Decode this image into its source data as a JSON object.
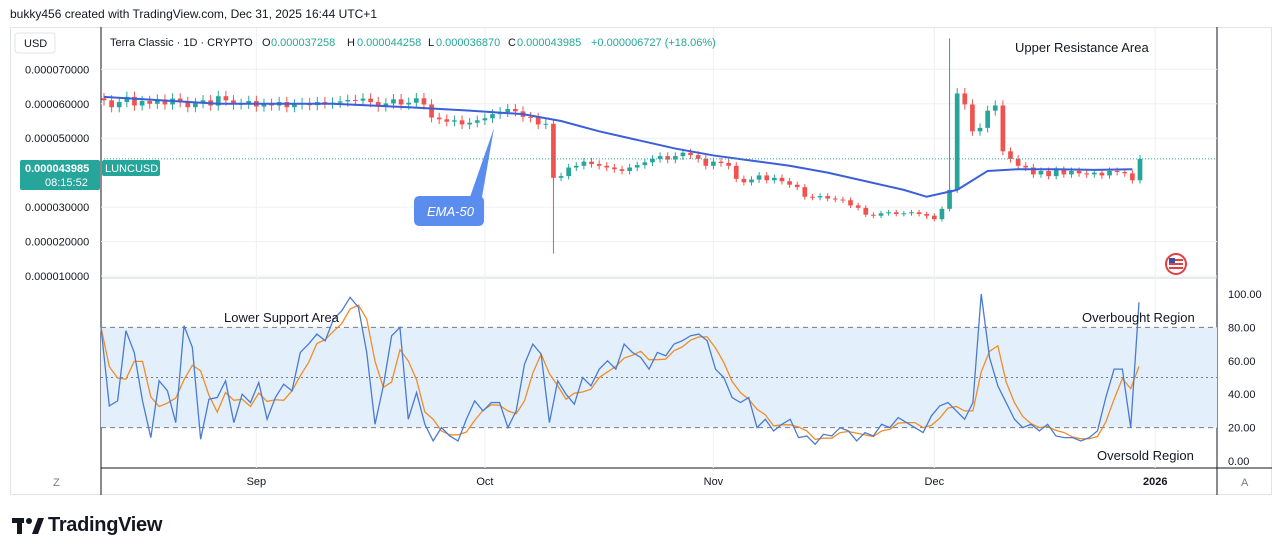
{
  "header": {
    "attribution": "bukky456 created with TradingView.com, Dec 31, 2025 16:44 UTC+1"
  },
  "legend": {
    "currency": "USD",
    "symbol": "Terra Classic · 1D · CRYPTO",
    "o_label": "O",
    "o_value": "0.000037258",
    "h_label": "H",
    "h_value": "0.000044258",
    "l_label": "L",
    "l_value": "0.000036870",
    "c_label": "C",
    "c_value": "0.000043985",
    "change": "+0.000006727 (+18.06%)"
  },
  "price_badge": {
    "price": "0.000043985",
    "countdown": "08:15:52",
    "ticker": "LUNCUSD"
  },
  "annotations": {
    "upper_resistance": "Upper Resistance Area",
    "lower_support": "Lower Support Area",
    "ema_callout": "EMA-50",
    "overbought": "Overbought Region",
    "oversold": "Oversold Region"
  },
  "axis_buttons": {
    "left": "Z",
    "right": "A"
  },
  "branding": {
    "logo_text": "TradingView"
  },
  "colors": {
    "up": "#26a69a",
    "down": "#ef5350",
    "ema": "#3b5fd9",
    "stoch_k": "#4a7bd0",
    "stoch_d": "#f28c28",
    "stoch_band": "#e3f0fb",
    "callout": "#5b8def"
  },
  "chart_data": [
    {
      "type": "candlestick",
      "ylim": [
        1e-05,
        8.2e-05
      ],
      "yticks": [
        "0.000070000",
        "0.000060000",
        "0.000050000",
        "0.000030000",
        "0.000020000",
        "0.000010000"
      ],
      "ytick_values": [
        7e-05,
        6e-05,
        5e-05,
        3e-05,
        2e-05,
        1e-05
      ],
      "xticks": [
        "Sep",
        "Oct",
        "Nov",
        "Dec",
        "2026"
      ],
      "xtick_days": [
        20,
        50,
        80,
        109,
        138
      ],
      "start_day": 0,
      "close": [
        6.1e-05,
        5.9e-05,
        6.05e-05,
        6.2e-05,
        5.95e-05,
        6.08e-05,
        6e-05,
        6.12e-05,
        5.98e-05,
        6.15e-05,
        6.05e-05,
        5.9e-05,
        6.02e-05,
        6.1e-05,
        5.95e-05,
        6.22e-05,
        6.1e-05,
        5.98e-05,
        6e-05,
        6.08e-05,
        5.92e-05,
        6e-05,
        5.95e-05,
        6.05e-05,
        5.9e-05,
        5.98e-05,
        6.02e-05,
        5.96e-05,
        6.05e-05,
        6.01e-05,
        6.03e-05,
        6.07e-05,
        6.11e-05,
        6.09e-05,
        6.15e-05,
        6.05e-05,
        5.92e-05,
        6.01e-05,
        6.13e-05,
        5.98e-05,
        6.03e-05,
        6.16e-05,
        5.98e-05,
        5.6e-05,
        5.55e-05,
        5.48e-05,
        5.52e-05,
        5.4e-05,
        5.45e-05,
        5.52e-05,
        5.58e-05,
        5.7e-05,
        5.76e-05,
        5.85e-05,
        5.78e-05,
        5.62e-05,
        5.6e-05,
        5.4e-05,
        5.42e-05,
        3.85e-05,
        3.9e-05,
        4.15e-05,
        4.2e-05,
        4.32e-05,
        4.25e-05,
        4.2e-05,
        4.15e-05,
        4.1e-05,
        4.05e-05,
        4.15e-05,
        4.22e-05,
        4.3e-05,
        4.4e-05,
        4.48e-05,
        4.38e-05,
        4.48e-05,
        4.58e-05,
        4.51e-05,
        4.4e-05,
        4.2e-05,
        4.32e-05,
        4.28e-05,
        4.2e-05,
        3.82e-05,
        3.72e-05,
        3.8e-05,
        3.92e-05,
        3.78e-05,
        3.85e-05,
        3.75e-05,
        3.65e-05,
        3.58e-05,
        3.3e-05,
        3.28e-05,
        3.32e-05,
        3.25e-05,
        3.22e-05,
        3.2e-05,
        3.05e-05,
        2.98e-05,
        2.78e-05,
        2.75e-05,
        2.82e-05,
        2.85e-05,
        2.8e-05,
        2.82e-05,
        2.85e-05,
        2.8e-05,
        2.75e-05,
        2.65e-05,
        2.95e-05,
        3.5e-05,
        6.3e-05,
        5.98e-05,
        5.2e-05,
        5.3e-05,
        5.8e-05,
        5.95e-05,
        4.62e-05,
        4.4e-05,
        4.2e-05,
        4.15e-05,
        3.95e-05,
        4.05e-05,
        3.9e-05,
        4.08e-05,
        3.95e-05,
        4.05e-05,
        3.98e-05,
        3.95e-05,
        4e-05,
        3.92e-05,
        4.05e-05,
        4.02e-05,
        3.98e-05,
        3.78e-05,
        4.4e-05
      ],
      "ema50": [
        6.2e-05,
        6e-05,
        6e-05,
        5.9e-05,
        5.8e-05,
        5.7e-05,
        5.5e-05,
        5.2e-05,
        4.95e-05,
        4.7e-05,
        4.5e-05,
        4.35e-05,
        4.2e-05,
        4e-05,
        3.75e-05,
        3.5e-05,
        3.3e-05,
        3.5e-05,
        4.05e-05,
        4.1e-05,
        4.1e-05,
        4.08e-05,
        4.1e-05
      ],
      "ema50_days": [
        0,
        15,
        30,
        40,
        48,
        55,
        60,
        65,
        70,
        75,
        80,
        85,
        90,
        95,
        100,
        105,
        108,
        112,
        116,
        120,
        125,
        130,
        135
      ]
    },
    {
      "type": "line",
      "name": "Stochastic",
      "ylim": [
        0,
        100
      ],
      "yticks": [
        "100.00",
        "80.00",
        "60.00",
        "40.00",
        "20.00",
        "0.00"
      ],
      "ytick_values": [
        100,
        80,
        60,
        40,
        20,
        0
      ],
      "levels": [
        80,
        50,
        20
      ],
      "k": [
        80,
        33,
        36,
        78,
        65,
        36,
        14,
        48,
        42,
        23,
        81,
        68,
        13,
        37,
        38,
        48,
        23,
        40,
        35,
        47,
        25,
        38,
        46,
        42,
        65,
        70,
        76,
        72,
        85,
        90,
        98,
        92,
        65,
        22,
        45,
        75,
        80,
        25,
        41,
        22,
        12,
        20,
        15,
        12,
        25,
        36,
        30,
        35,
        35,
        20,
        30,
        58,
        70,
        64,
        23,
        48,
        40,
        34,
        50,
        45,
        55,
        60,
        55,
        70,
        65,
        62,
        55,
        65,
        63,
        70,
        72,
        75,
        76,
        72,
        55,
        50,
        38,
        35,
        38,
        20,
        25,
        18,
        22,
        25,
        14,
        15,
        10,
        16,
        15,
        20,
        18,
        12,
        17,
        15,
        22,
        20,
        26,
        23,
        20,
        17,
        27,
        33,
        35,
        30,
        25,
        35,
        100,
        62,
        45,
        35,
        25,
        20,
        22,
        18,
        22,
        15,
        14,
        14,
        12,
        14,
        18,
        38,
        55,
        55,
        20,
        95
      ]
    }
  ]
}
